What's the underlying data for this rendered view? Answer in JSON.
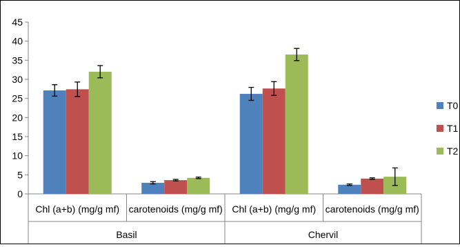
{
  "chart_data": {
    "type": "bar",
    "title": "",
    "xlabel": "",
    "ylabel": "",
    "ylim": [
      0,
      45
    ],
    "yticks": [
      "0",
      "5",
      "10",
      "15",
      "20",
      "25",
      "30",
      "35",
      "40",
      "45"
    ],
    "grid": false,
    "legend_position": "right",
    "groups": [
      {
        "label": "Basil",
        "categories": [
          "Chl (a+b) (mg/g mf)",
          "carotenoids (mg/g mf)"
        ]
      },
      {
        "label": "Chervil",
        "categories": [
          "Chl (a+b) (mg/g mf)",
          "carotenoids (mg/g mf)"
        ]
      }
    ],
    "series": [
      {
        "name": "T0",
        "color": "#4f81bd",
        "values": [
          27.1,
          2.9,
          26.2,
          2.4
        ],
        "errors": [
          1.5,
          0.3,
          1.7,
          0.2
        ]
      },
      {
        "name": "T1",
        "color": "#c0504d",
        "values": [
          27.4,
          3.6,
          27.6,
          4.0
        ],
        "errors": [
          1.9,
          0.2,
          1.8,
          0.2
        ]
      },
      {
        "name": "T2",
        "color": "#9bbb59",
        "values": [
          32.0,
          4.2,
          36.5,
          4.5
        ],
        "errors": [
          1.6,
          0.2,
          1.6,
          2.3
        ]
      }
    ]
  }
}
